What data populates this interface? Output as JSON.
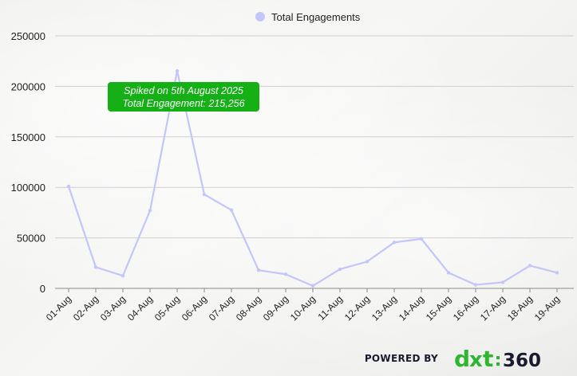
{
  "chart_data": {
    "type": "line",
    "title": "",
    "xlabel": "",
    "ylabel": "",
    "legend": {
      "position": "top-center"
    },
    "categories": [
      "01-Aug",
      "02-Aug",
      "03-Aug",
      "04-Aug",
      "05-Aug",
      "06-Aug",
      "07-Aug",
      "08-Aug",
      "09-Aug",
      "10-Aug",
      "11-Aug",
      "12-Aug",
      "13-Aug",
      "14-Aug",
      "15-Aug",
      "16-Aug",
      "17-Aug",
      "18-Aug",
      "19-Aug"
    ],
    "series": [
      {
        "name": "Total Engagements",
        "color": "#c3c6fb",
        "values": [
          101000,
          21000,
          12500,
          77000,
          215256,
          93000,
          77500,
          18000,
          14000,
          2500,
          19000,
          26500,
          45500,
          49000,
          15500,
          3500,
          6000,
          22500,
          15500
        ]
      }
    ],
    "ylim": [
      0,
      250000
    ],
    "yticks": [
      "250000",
      "200000",
      "150000",
      "100000",
      "50000",
      "0"
    ],
    "ytick_values": [
      250000,
      200000,
      150000,
      100000,
      50000,
      0
    ],
    "grid": true,
    "annotation": {
      "target_index": 4,
      "line1": "Spiked on 5th August 2025",
      "line2": "Total Engagement:  215,256",
      "background": "#15b015"
    }
  },
  "footer": {
    "powered_by": "POWERED BY",
    "logo_text": "dxt : 360",
    "logo_color_primary": "#2fb52f",
    "logo_color_secondary": "#1a1a2e"
  }
}
